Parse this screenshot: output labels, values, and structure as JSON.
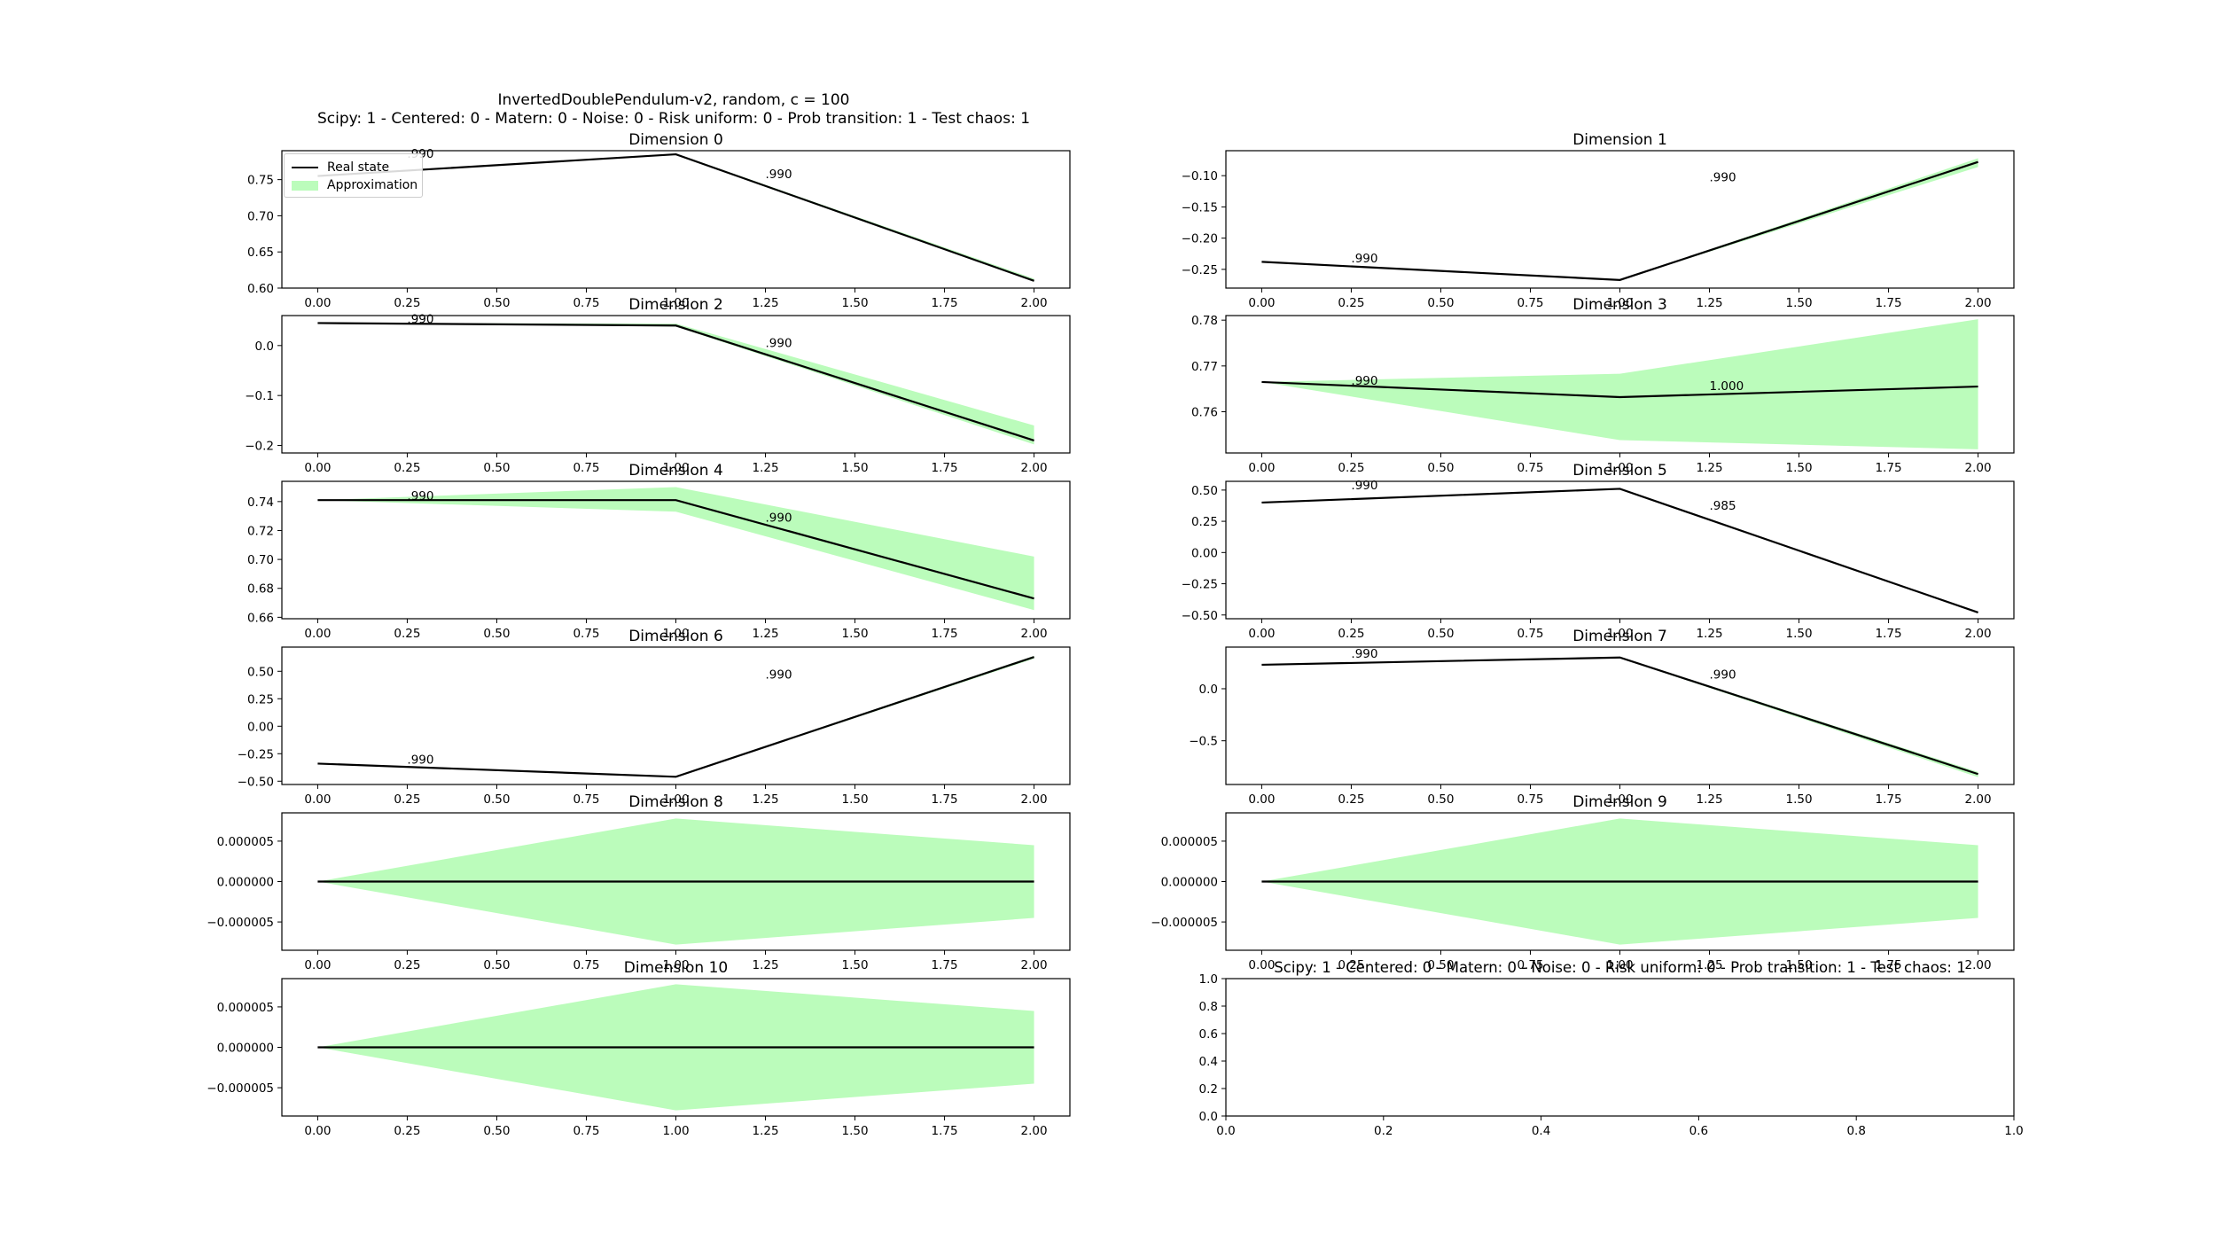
{
  "figure": {
    "title_line1": "InvertedDoublePendulum-v2, random, c = 100",
    "title_line2": "Scipy: 1 - Centered: 0 - Matern: 0 - Noise: 0 - Risk uniform: 0 - Prob transition: 1 - Test chaos: 1",
    "colors": {
      "real_state": "#000000",
      "approximation": "#bbfcbb"
    }
  },
  "legend": {
    "items": [
      "Real state",
      "Approximation"
    ]
  },
  "chart_data": [
    {
      "type": "line",
      "title": "Dimension 0",
      "x": [
        0,
        1,
        2
      ],
      "xticks": [
        "0.00",
        "0.25",
        "0.50",
        "0.75",
        "1.00",
        "1.25",
        "1.50",
        "1.75",
        "2.00"
      ],
      "ylim": [
        0.6,
        0.79
      ],
      "yticks": [
        0.6,
        0.65,
        0.7,
        0.75
      ],
      "yticklabels": [
        "0.60",
        "0.65",
        "0.70",
        "0.75"
      ],
      "series": [
        {
          "name": "Real state",
          "values": [
            0.755,
            0.785,
            0.61
          ]
        },
        {
          "name": "Approximation",
          "lower": [
            0.755,
            0.784,
            0.609
          ],
          "upper": [
            0.755,
            0.786,
            0.613
          ]
        }
      ],
      "annotations": [
        {
          "text": ".990",
          "x": 0.25,
          "y": 0.785
        },
        {
          "text": ".990",
          "x": 1.25,
          "y": 0.757
        }
      ]
    },
    {
      "type": "line",
      "title": "Dimension 1",
      "x": [
        0,
        1,
        2
      ],
      "xticks": [
        "0.00",
        "0.25",
        "0.50",
        "0.75",
        "1.00",
        "1.25",
        "1.50",
        "1.75",
        "2.00"
      ],
      "ylim": [
        -0.28,
        -0.06
      ],
      "yticks": [
        -0.25,
        -0.2,
        -0.15,
        -0.1
      ],
      "yticklabels": [
        "−0.25",
        "−0.20",
        "−0.15",
        "−0.10"
      ],
      "series": [
        {
          "name": "Real state",
          "values": [
            -0.238,
            -0.267,
            -0.078
          ]
        },
        {
          "name": "Approximation",
          "lower": [
            -0.238,
            -0.267,
            -0.086
          ],
          "upper": [
            -0.238,
            -0.267,
            -0.072
          ]
        }
      ],
      "annotations": [
        {
          "text": ".990",
          "x": 0.25,
          "y": -0.233
        },
        {
          "text": ".990",
          "x": 1.25,
          "y": -0.103
        }
      ]
    },
    {
      "type": "line",
      "title": "Dimension 2",
      "x": [
        0,
        1,
        2
      ],
      "xticks": [
        "0.00",
        "0.25",
        "0.50",
        "0.75",
        "1.00",
        "1.25",
        "1.50",
        "1.75",
        "2.00"
      ],
      "ylim": [
        -0.215,
        0.06
      ],
      "yticks": [
        -0.2,
        -0.1,
        0.0
      ],
      "yticklabels": [
        "−0.2",
        "−0.1",
        "0.0"
      ],
      "series": [
        {
          "name": "Real state",
          "values": [
            0.045,
            0.04,
            -0.19
          ]
        },
        {
          "name": "Approximation",
          "lower": [
            0.045,
            0.038,
            -0.198
          ],
          "upper": [
            0.045,
            0.044,
            -0.16
          ]
        }
      ],
      "annotations": [
        {
          "text": ".990",
          "x": 0.25,
          "y": 0.052
        },
        {
          "text": ".990",
          "x": 1.25,
          "y": 0.004
        }
      ]
    },
    {
      "type": "line",
      "title": "Dimension 3",
      "x": [
        0,
        1,
        2
      ],
      "xticks": [
        "0.00",
        "0.25",
        "0.50",
        "0.75",
        "1.00",
        "1.25",
        "1.50",
        "1.75",
        "2.00"
      ],
      "ylim": [
        0.751,
        0.781
      ],
      "yticks": [
        0.76,
        0.77,
        0.78
      ],
      "yticklabels": [
        "0.76",
        "0.77",
        "0.78"
      ],
      "series": [
        {
          "name": "Real state",
          "values": [
            0.7665,
            0.7632,
            0.7655
          ]
        },
        {
          "name": "Approximation",
          "lower": [
            0.7665,
            0.7538,
            0.7518
          ],
          "upper": [
            0.7665,
            0.7683,
            0.7802
          ]
        }
      ],
      "annotations": [
        {
          "text": ".990",
          "x": 0.25,
          "y": 0.7667
        },
        {
          "text": "1.000",
          "x": 1.25,
          "y": 0.7655
        }
      ]
    },
    {
      "type": "line",
      "title": "Dimension 4",
      "x": [
        0,
        1,
        2
      ],
      "xticks": [
        "0.00",
        "0.25",
        "0.50",
        "0.75",
        "1.00",
        "1.25",
        "1.50",
        "1.75",
        "2.00"
      ],
      "ylim": [
        0.659,
        0.754
      ],
      "yticks": [
        0.66,
        0.68,
        0.7,
        0.72,
        0.74
      ],
      "yticklabels": [
        "0.66",
        "0.68",
        "0.70",
        "0.72",
        "0.74"
      ],
      "series": [
        {
          "name": "Real state",
          "values": [
            0.741,
            0.741,
            0.673
          ]
        },
        {
          "name": "Approximation",
          "lower": [
            0.741,
            0.733,
            0.665
          ],
          "upper": [
            0.741,
            0.75,
            0.702
          ]
        }
      ],
      "annotations": [
        {
          "text": ".990",
          "x": 0.25,
          "y": 0.7435
        },
        {
          "text": ".990",
          "x": 1.25,
          "y": 0.7285
        }
      ]
    },
    {
      "type": "line",
      "title": "Dimension 5",
      "x": [
        0,
        1,
        2
      ],
      "xticks": [
        "0.00",
        "0.25",
        "0.50",
        "0.75",
        "1.00",
        "1.25",
        "1.50",
        "1.75",
        "2.00"
      ],
      "ylim": [
        -0.53,
        0.57
      ],
      "yticks": [
        -0.5,
        -0.25,
        0.0,
        0.25,
        0.5
      ],
      "yticklabels": [
        "−0.50",
        "−0.25",
        "0.00",
        "0.25",
        "0.50"
      ],
      "series": [
        {
          "name": "Real state",
          "values": [
            0.4,
            0.51,
            -0.48
          ]
        },
        {
          "name": "Approximation",
          "lower": [
            0.4,
            0.51,
            -0.485
          ],
          "upper": [
            0.4,
            0.51,
            -0.475
          ]
        }
      ],
      "annotations": [
        {
          "text": ".990",
          "x": 0.25,
          "y": 0.535
        },
        {
          "text": ".985",
          "x": 1.25,
          "y": 0.37
        }
      ]
    },
    {
      "type": "line",
      "title": "Dimension 6",
      "x": [
        0,
        1,
        2
      ],
      "xticks": [
        "0.00",
        "0.25",
        "0.50",
        "0.75",
        "1.00",
        "1.25",
        "1.50",
        "1.75",
        "2.00"
      ],
      "ylim": [
        -0.53,
        0.72
      ],
      "yticks": [
        -0.5,
        -0.25,
        0.0,
        0.25,
        0.5
      ],
      "yticklabels": [
        "−0.50",
        "−0.25",
        "0.00",
        "0.25",
        "0.50"
      ],
      "series": [
        {
          "name": "Real state",
          "values": [
            -0.34,
            -0.46,
            0.63
          ]
        },
        {
          "name": "Approximation",
          "lower": [
            -0.34,
            -0.465,
            0.615
          ],
          "upper": [
            -0.34,
            -0.455,
            0.64
          ]
        }
      ],
      "annotations": [
        {
          "text": ".990",
          "x": 0.25,
          "y": -0.31
        },
        {
          "text": ".990",
          "x": 1.25,
          "y": 0.465
        }
      ]
    },
    {
      "type": "line",
      "title": "Dimension 7",
      "x": [
        0,
        1,
        2
      ],
      "xticks": [
        "0.00",
        "0.25",
        "0.50",
        "0.75",
        "1.00",
        "1.25",
        "1.50",
        "1.75",
        "2.00"
      ],
      "ylim": [
        -0.92,
        0.4
      ],
      "yticks": [
        -0.5,
        0.0
      ],
      "yticklabels": [
        "−0.5",
        "0.0"
      ],
      "series": [
        {
          "name": "Real state",
          "values": [
            0.23,
            0.3,
            -0.82
          ]
        },
        {
          "name": "Approximation",
          "lower": [
            0.23,
            0.295,
            -0.85
          ],
          "upper": [
            0.23,
            0.305,
            -0.8
          ]
        }
      ],
      "annotations": [
        {
          "text": ".990",
          "x": 0.25,
          "y": 0.33
        },
        {
          "text": ".990",
          "x": 1.25,
          "y": 0.13
        }
      ]
    },
    {
      "type": "line",
      "title": "Dimension 8",
      "x": [
        0,
        1,
        2
      ],
      "xticks": [
        "0.00",
        "0.25",
        "0.50",
        "0.75",
        "1.00",
        "1.25",
        "1.50",
        "1.75",
        "2.00"
      ],
      "ylim": [
        -8.5e-06,
        8.5e-06
      ],
      "yticks": [
        -5e-06,
        0.0,
        5e-06
      ],
      "yticklabels": [
        "−0.000005",
        "0.000000",
        "0.000005"
      ],
      "series": [
        {
          "name": "Real state",
          "values": [
            0.0,
            0.0,
            0.0
          ]
        },
        {
          "name": "Approximation",
          "lower": [
            0.0,
            -7.8e-06,
            -4.5e-06
          ],
          "upper": [
            0.0,
            7.8e-06,
            4.5e-06
          ]
        }
      ],
      "annotations": []
    },
    {
      "type": "line",
      "title": "Dimension 9",
      "x": [
        0,
        1,
        2
      ],
      "xticks": [
        "0.00",
        "0.25",
        "0.50",
        "0.75",
        "1.00",
        "1.25",
        "1.50",
        "1.75",
        "2.00"
      ],
      "ylim": [
        -8.5e-06,
        8.5e-06
      ],
      "yticks": [
        -5e-06,
        0.0,
        5e-06
      ],
      "yticklabels": [
        "−0.000005",
        "0.000000",
        "0.000005"
      ],
      "series": [
        {
          "name": "Real state",
          "values": [
            0.0,
            0.0,
            0.0
          ]
        },
        {
          "name": "Approximation",
          "lower": [
            0.0,
            -7.8e-06,
            -4.5e-06
          ],
          "upper": [
            0.0,
            7.8e-06,
            4.5e-06
          ]
        }
      ],
      "annotations": []
    },
    {
      "type": "line",
      "title": "Dimension 10",
      "x": [
        0,
        1,
        2
      ],
      "xticks": [
        "0.00",
        "0.25",
        "0.50",
        "0.75",
        "1.00",
        "1.25",
        "1.50",
        "1.75",
        "2.00"
      ],
      "ylim": [
        -8.5e-06,
        8.5e-06
      ],
      "yticks": [
        -5e-06,
        0.0,
        5e-06
      ],
      "yticklabels": [
        "−0.000005",
        "0.000000",
        "0.000005"
      ],
      "series": [
        {
          "name": "Real state",
          "values": [
            0.0,
            0.0,
            0.0
          ]
        },
        {
          "name": "Approximation",
          "lower": [
            0.0,
            -7.8e-06,
            -4.5e-06
          ],
          "upper": [
            0.0,
            7.8e-06,
            4.5e-06
          ]
        }
      ],
      "annotations": []
    },
    {
      "type": "line",
      "title": "Scipy: 1 - Centered: 0 - Matern: 0 - Noise: 0 - Risk uniform: 0 - Prob transition: 1 - Test chaos: 1",
      "x": [],
      "xlim": [
        0,
        1
      ],
      "xticks": [
        "0.0",
        "0.2",
        "0.4",
        "0.6",
        "0.8",
        "1.0"
      ],
      "ylim": [
        0,
        1
      ],
      "yticks": [
        0.0,
        0.2,
        0.4,
        0.6,
        0.8,
        1.0
      ],
      "yticklabels": [
        "0.0",
        "0.2",
        "0.4",
        "0.6",
        "0.8",
        "1.0"
      ],
      "series": [],
      "annotations": []
    }
  ]
}
